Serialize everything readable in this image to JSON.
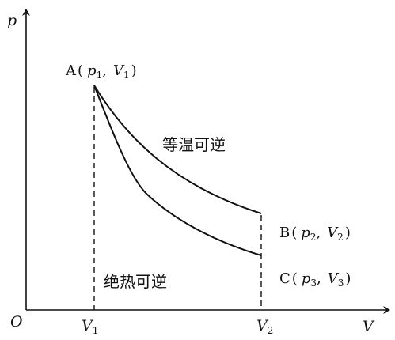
{
  "axes": {
    "y_label": "p",
    "x_label": "V",
    "origin_label": "O",
    "x_ticks": [
      {
        "main": "V",
        "sub": "1"
      },
      {
        "main": "V",
        "sub": "2"
      }
    ]
  },
  "points": {
    "A": {
      "letter": "A",
      "open": "(",
      "p": "p",
      "p_sub": "1",
      "comma": ",",
      "v": "V",
      "v_sub": "1",
      "close": ")"
    },
    "B": {
      "letter": "B",
      "open": "(",
      "p": "p",
      "p_sub": "2",
      "comma": ",",
      "v": "V",
      "v_sub": "2",
      "close": ")"
    },
    "C": {
      "letter": "C",
      "open": "(",
      "p": "p",
      "p_sub": "3",
      "comma": ",",
      "v": "V",
      "v_sub": "3",
      "close": ")"
    }
  },
  "curves": {
    "isothermal_label": "等温可逆",
    "adiabatic_label": "绝热可逆"
  },
  "colors": {
    "ink": "#111111",
    "background": "#ffffff"
  }
}
